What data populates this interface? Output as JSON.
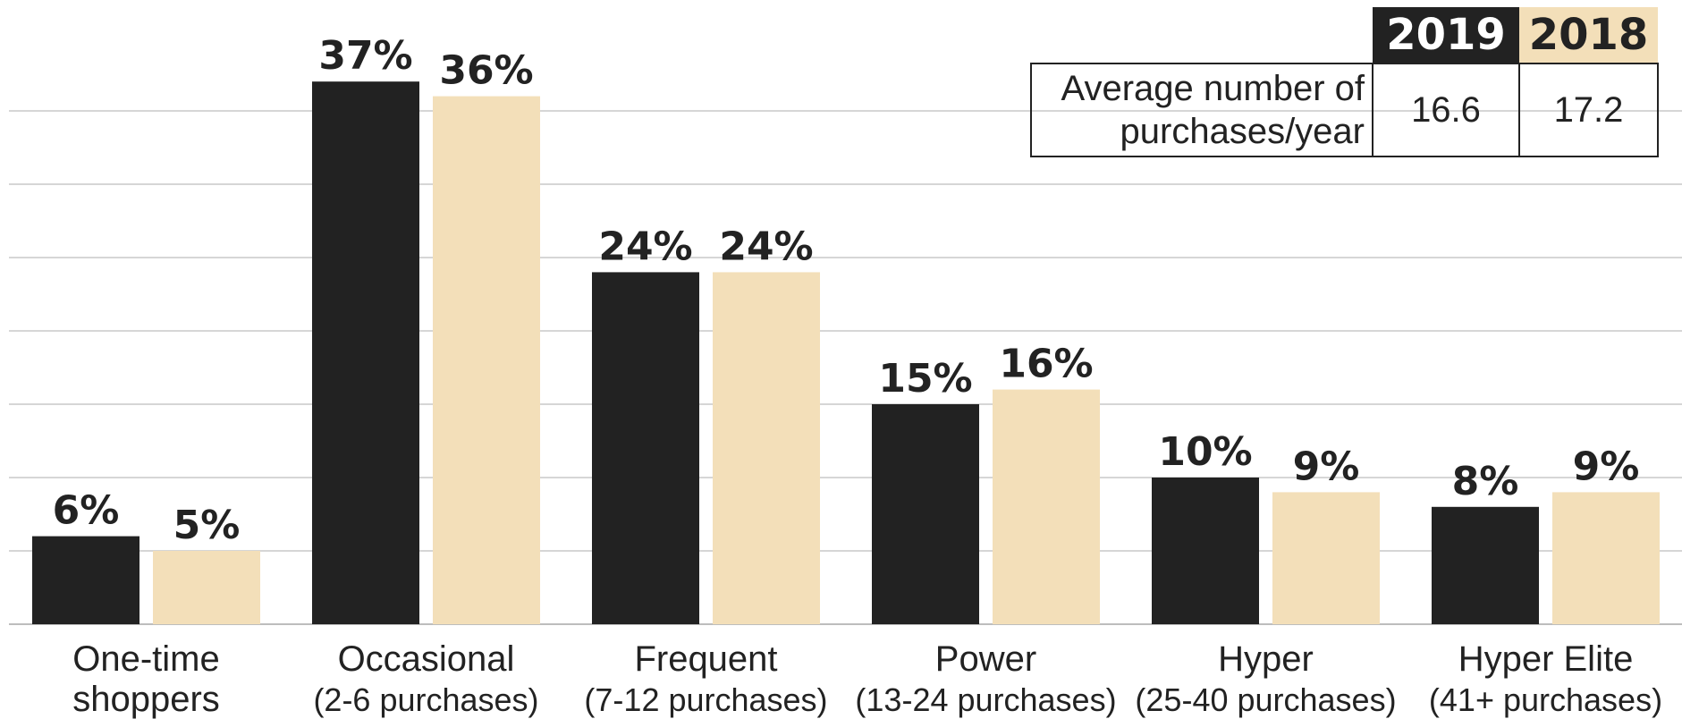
{
  "chart_data": {
    "type": "bar",
    "categories": [
      {
        "name": "One-time",
        "sub": "shoppers"
      },
      {
        "name": "Occasional",
        "sub": "(2-6 purchases)"
      },
      {
        "name": "Frequent",
        "sub": "(7-12 purchases)"
      },
      {
        "name": "Power",
        "sub": "(13-24 purchases)"
      },
      {
        "name": "Hyper",
        "sub": "(25-40 purchases)"
      },
      {
        "name": "Hyper Elite",
        "sub": "(41+ purchases)"
      }
    ],
    "series": [
      {
        "name": "2019",
        "color": "#222222",
        "values": [
          6,
          37,
          24,
          15,
          10,
          8
        ],
        "labels": [
          "6%",
          "37%",
          "24%",
          "15%",
          "10%",
          "8%"
        ]
      },
      {
        "name": "2018",
        "color": "#f3dfb9",
        "values": [
          5,
          36,
          24,
          16,
          9,
          9
        ],
        "labels": [
          "5%",
          "36%",
          "24%",
          "16%",
          "9%",
          "9%"
        ]
      }
    ],
    "ylim": [
      0,
      40
    ],
    "grid": true,
    "legend": "top-right table"
  },
  "summary_table": {
    "headers": [
      "2019",
      "2018"
    ],
    "row_label": "Average number of purchases/year",
    "values": [
      "16.6",
      "17.2"
    ]
  }
}
